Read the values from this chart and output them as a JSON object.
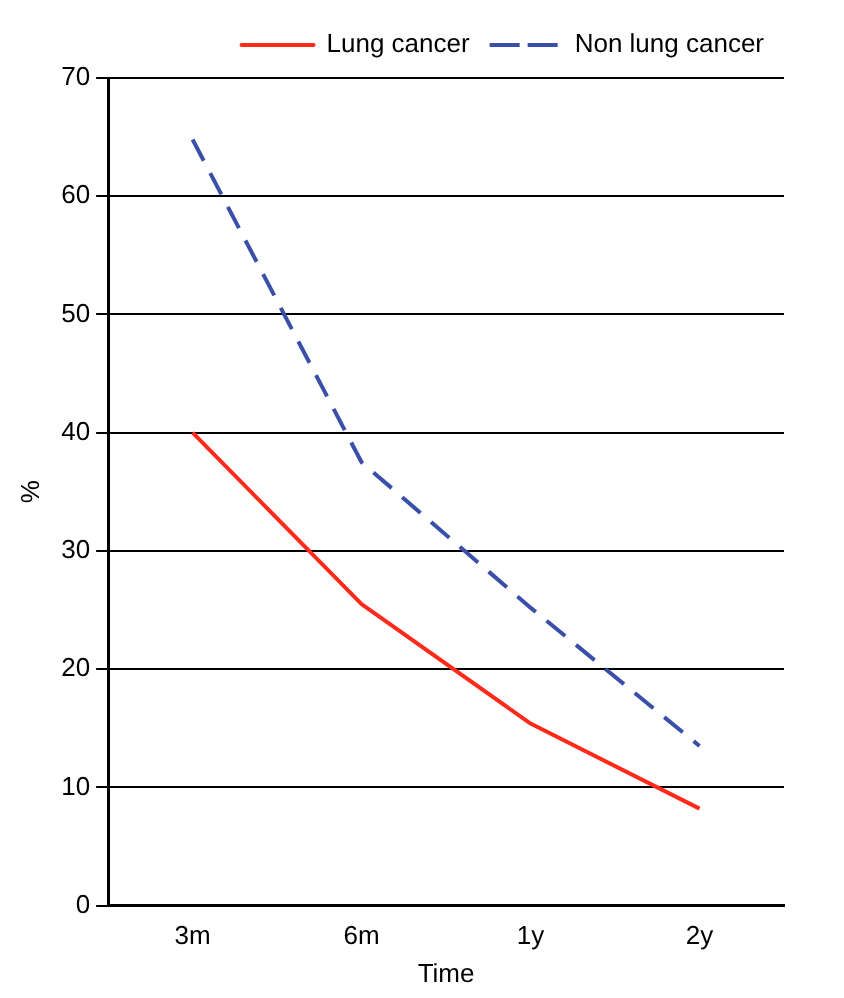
{
  "chart_data": {
    "type": "line",
    "xlabel": "Time",
    "ylabel": "%",
    "categories": [
      "3m",
      "6m",
      "1y",
      "2y"
    ],
    "series": [
      {
        "name": "Lung cancer",
        "color": "#ff2a1a",
        "line_style": "solid",
        "values": [
          40,
          25.5,
          15.4,
          8.2
        ]
      },
      {
        "name": "Non lung cancer",
        "color": "#3a4fa8",
        "line_style": "dashed",
        "values": [
          64.8,
          37.5,
          25.2,
          13.5
        ]
      }
    ],
    "ylim": [
      0,
      70
    ],
    "yticks": [
      0,
      10,
      20,
      30,
      40,
      50,
      60,
      70
    ],
    "grid": "y",
    "legend": "top right",
    "marker": "none"
  }
}
